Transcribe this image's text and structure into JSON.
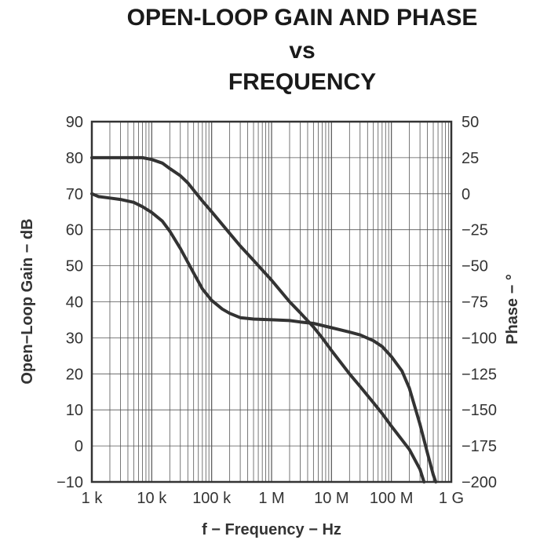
{
  "chart_data": {
    "type": "line",
    "title_lines": [
      "OPEN-LOOP GAIN AND PHASE",
      "vs",
      "FREQUENCY"
    ],
    "xlabel": "f − Frequency − Hz",
    "ylabel_left": "Open−Loop Gain − dB",
    "ylabel_right": "Phase − °",
    "x_scale": "log",
    "xlim": [
      1000,
      1000000000
    ],
    "ylim_left": [
      -10,
      90
    ],
    "ylim_right": [
      -200,
      50
    ],
    "x_ticks": [
      {
        "value": 1000,
        "label": "1 k"
      },
      {
        "value": 10000,
        "label": "10 k"
      },
      {
        "value": 100000,
        "label": "100 k"
      },
      {
        "value": 1000000,
        "label": "1 M"
      },
      {
        "value": 10000000,
        "label": "10 M"
      },
      {
        "value": 100000000,
        "label": "100 M"
      },
      {
        "value": 1000000000,
        "label": "1 G"
      }
    ],
    "y_left_ticks": [
      {
        "value": 90,
        "label": "90"
      },
      {
        "value": 80,
        "label": "80"
      },
      {
        "value": 70,
        "label": "70"
      },
      {
        "value": 60,
        "label": "60"
      },
      {
        "value": 50,
        "label": "50"
      },
      {
        "value": 40,
        "label": "40"
      },
      {
        "value": 30,
        "label": "30"
      },
      {
        "value": 20,
        "label": "20"
      },
      {
        "value": 10,
        "label": "10"
      },
      {
        "value": 0,
        "label": "0"
      },
      {
        "value": -10,
        "label": "−10"
      }
    ],
    "y_right_ticks": [
      {
        "value": 50,
        "label": "50"
      },
      {
        "value": 25,
        "label": "25"
      },
      {
        "value": 0,
        "label": "0"
      },
      {
        "value": -25,
        "label": "−25"
      },
      {
        "value": -50,
        "label": "−50"
      },
      {
        "value": -75,
        "label": "−75"
      },
      {
        "value": -100,
        "label": "−100"
      },
      {
        "value": -125,
        "label": "−125"
      },
      {
        "value": -150,
        "label": "−150"
      },
      {
        "value": -175,
        "label": "−175"
      },
      {
        "value": -200,
        "label": "−200"
      }
    ],
    "grid": true,
    "series": [
      {
        "axis": "left",
        "color": "#333333",
        "points": [
          [
            1000,
            80
          ],
          [
            2000,
            80
          ],
          [
            4000,
            80
          ],
          [
            7000,
            80
          ],
          [
            10000,
            79.5
          ],
          [
            15000,
            78.5
          ],
          [
            20000,
            77
          ],
          [
            30000,
            75
          ],
          [
            40000,
            73
          ],
          [
            50000,
            71
          ],
          [
            70000,
            68
          ],
          [
            100000,
            65
          ],
          [
            200000,
            59
          ],
          [
            300000,
            55.5
          ],
          [
            500000,
            51.5
          ],
          [
            1000000,
            46
          ],
          [
            2000000,
            40
          ],
          [
            3000000,
            37
          ],
          [
            5000000,
            33
          ],
          [
            7000000,
            30
          ],
          [
            10000000,
            26.5
          ],
          [
            20000000,
            20
          ],
          [
            30000000,
            16.5
          ],
          [
            50000000,
            12
          ],
          [
            70000000,
            9
          ],
          [
            100000000,
            5.5
          ],
          [
            200000000,
            -1
          ],
          [
            300000000,
            -6.5
          ],
          [
            350000000,
            -10
          ]
        ]
      },
      {
        "axis": "right",
        "color": "#333333",
        "points": [
          [
            1000,
            0
          ],
          [
            1300,
            -2
          ],
          [
            2000,
            -3
          ],
          [
            3000,
            -4
          ],
          [
            5000,
            -6
          ],
          [
            7000,
            -9
          ],
          [
            10000,
            -13
          ],
          [
            15000,
            -19
          ],
          [
            20000,
            -26
          ],
          [
            30000,
            -38
          ],
          [
            50000,
            -55
          ],
          [
            70000,
            -66
          ],
          [
            100000,
            -74
          ],
          [
            150000,
            -80
          ],
          [
            200000,
            -83
          ],
          [
            300000,
            -86
          ],
          [
            500000,
            -87
          ],
          [
            1000000,
            -87.5
          ],
          [
            2000000,
            -88
          ],
          [
            3000000,
            -89
          ],
          [
            5000000,
            -90
          ],
          [
            10000000,
            -93
          ],
          [
            20000000,
            -96
          ],
          [
            30000000,
            -98
          ],
          [
            50000000,
            -102
          ],
          [
            70000000,
            -106
          ],
          [
            100000000,
            -113
          ],
          [
            150000000,
            -123
          ],
          [
            200000000,
            -135
          ],
          [
            300000000,
            -160
          ],
          [
            400000000,
            -180
          ],
          [
            500000000,
            -195
          ],
          [
            550000000,
            -200
          ]
        ]
      }
    ]
  }
}
